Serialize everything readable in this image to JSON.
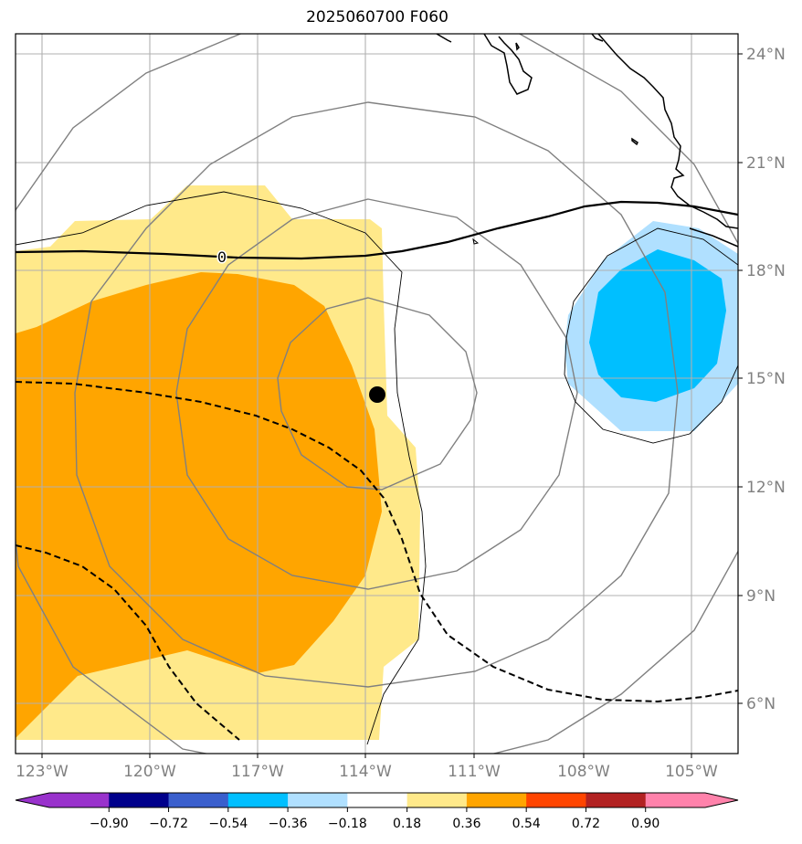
{
  "title": "2025060700 F060",
  "map": {
    "lon_labels": [
      "123°W",
      "120°W",
      "117°W",
      "114°W",
      "111°W",
      "108°W",
      "105°W"
    ],
    "lat_labels": [
      "24°N",
      "21°N",
      "18°N",
      "15°N",
      "12°N",
      "9°N",
      "6°N"
    ],
    "contour_label": "0",
    "storm_center": {
      "lon": -113.7,
      "lat": 14.6
    },
    "fill_colors": {
      "pos_018_036": "#ffe98a",
      "pos_036_054": "#ffa500",
      "neg_018_036": "#b0e0ff",
      "neg_036_054": "#00bfff"
    }
  },
  "colorbar": {
    "ticks": [
      "−0.90",
      "−0.72",
      "−0.54",
      "−0.36",
      "−0.18",
      "0.18",
      "0.36",
      "0.54",
      "0.72",
      "0.90"
    ],
    "colors": [
      "#9932cc",
      "#9932cc",
      "#00008b",
      "#3a5fcd",
      "#00bfff",
      "#b0e0ff",
      "#ffffff",
      "#ffe98a",
      "#ffa500",
      "#ff4500",
      "#b22222",
      "#ff82ab"
    ]
  }
}
